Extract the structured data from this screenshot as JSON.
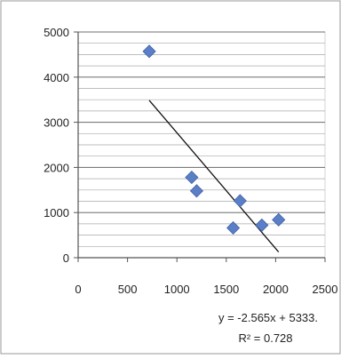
{
  "chart_data": {
    "type": "scatter",
    "title": "",
    "xlabel": "",
    "ylabel": "",
    "xlim": [
      0,
      2500
    ],
    "ylim": [
      0,
      5000
    ],
    "x_ticks": [
      0,
      500,
      1000,
      1500,
      2000,
      2500
    ],
    "y_ticks": [
      0,
      1000,
      2000,
      3000,
      4000,
      5000
    ],
    "x_tick_labels": [
      "0",
      "500",
      "1000",
      "1500",
      "2000",
      "2500"
    ],
    "y_tick_labels": [
      "0",
      "1000",
      "2000",
      "3000",
      "4000",
      "5000"
    ],
    "grid": "horizontal",
    "legend": "none",
    "series": [
      {
        "marker": "diamond",
        "color": "#5b7fc7",
        "points": [
          {
            "x": 720,
            "y": 4570
          },
          {
            "x": 1150,
            "y": 1780
          },
          {
            "x": 1200,
            "y": 1480
          },
          {
            "x": 1570,
            "y": 660
          },
          {
            "x": 1640,
            "y": 1260
          },
          {
            "x": 1860,
            "y": 720
          },
          {
            "x": 2030,
            "y": 840
          }
        ]
      }
    ],
    "trendline": {
      "type": "linear",
      "slope": -2.565,
      "intercept": 5333,
      "x_range": [
        720,
        2030
      ],
      "color": "#111111"
    },
    "annotations": {
      "equation": "y = -2.565x + 5333.",
      "r_squared": "R² = 0.728"
    }
  }
}
